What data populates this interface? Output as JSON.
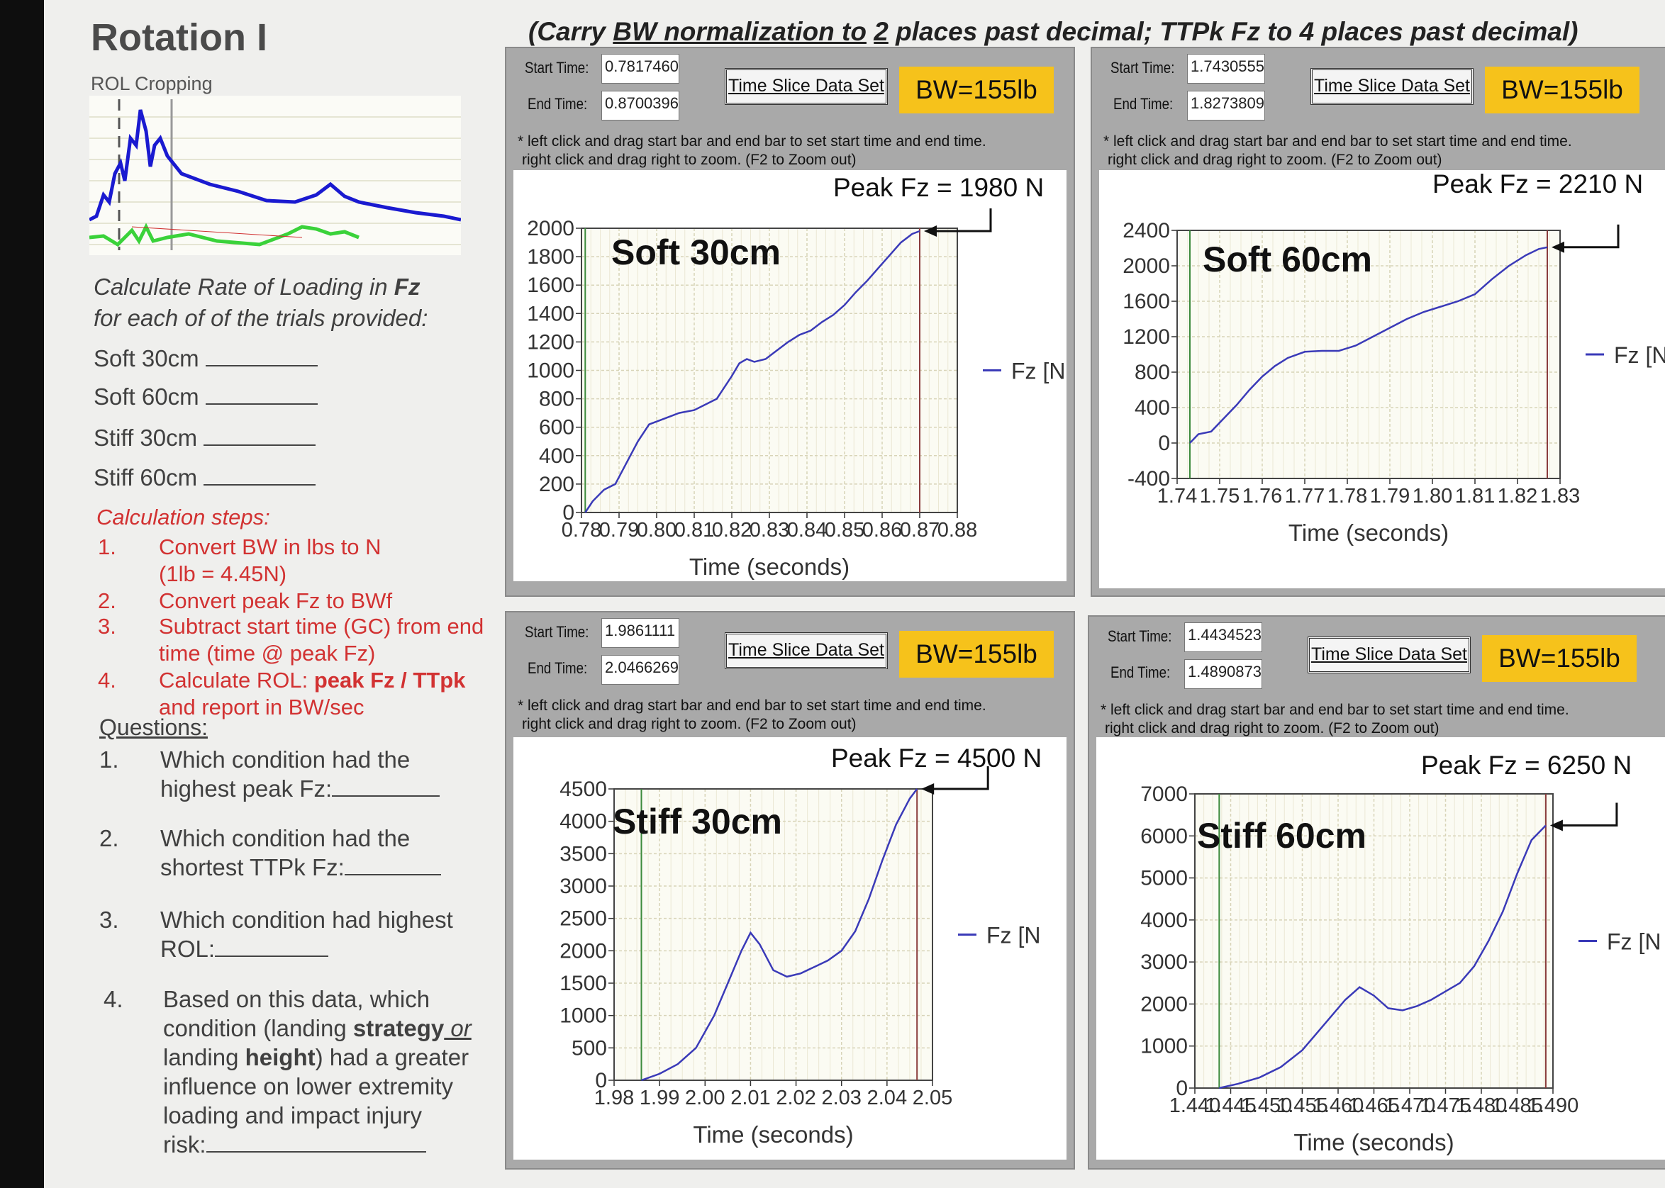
{
  "left": {
    "title": "Rotation I",
    "rol_label": "ROL Cropping",
    "instr1": "Calculate Rate of Loading in ",
    "instr1b": "Fz",
    "instr2": "for each of of the trials provided:",
    "trials": [
      "Soft 30cm",
      "Soft 60cm",
      "Stiff 30cm",
      "Stiff 60cm"
    ],
    "calc_title": "Calculation steps:",
    "steps": [
      {
        "n": "1.",
        "l1": "Convert BW in lbs to N",
        "l2": "(1lb = 4.45N)"
      },
      {
        "n": "2.",
        "l1": "Convert peak Fz to BWf"
      },
      {
        "n": "3.",
        "l1": "Subtract start time (GC) from end",
        "l2": "time (time @ peak Fz)"
      },
      {
        "n": "4.",
        "l1a": "Calculate ROL:  ",
        "l1b": "peak Fz / TTpk",
        "l2": "and report in BW/sec"
      }
    ],
    "questions_title": "Questions:",
    "questions": [
      {
        "n": "1.",
        "lines": [
          "Which condition had the",
          "highest peak Fz:"
        ]
      },
      {
        "n": "2.",
        "lines": [
          "Which condition had the",
          "shortest TTPk Fz:"
        ]
      },
      {
        "n": "3.",
        "lines": [
          "Which condition had highest",
          "ROL:"
        ]
      },
      {
        "n": "4.",
        "lines": [
          "Based on this data, which"
        ],
        "l2a": "condition (landing ",
        "l2b": "strategy",
        "l2c": " or",
        "l3a": "landing ",
        "l3b": "height",
        "l3c": ") had a greater",
        "l4": "influence on lower extremity",
        "l5": "loading and impact injury",
        "l6": "risk:"
      }
    ]
  },
  "header": {
    "a": "(Carry ",
    "b": "BW normalization to",
    "c": " ",
    "d": "2",
    "e": " places past decimal; TTPk Fz to 4 places past decimal)"
  },
  "common": {
    "start_label": "Start Time:",
    "end_label": "End Time:",
    "button": "Time Slice Data Set",
    "bw": "BW=155lb",
    "hint1": "* left click and drag start bar and end bar to set start time and end time.",
    "hint2": "right click and drag right to zoom. (F2 to Zoom out)",
    "xlabel": "Time (seconds)",
    "legend": "Fz [N"
  },
  "panels": [
    {
      "id": "soft30",
      "start": "0.7817460",
      "end": "0.8700396",
      "peak": "Peak Fz = 1980 N",
      "label": "Soft 30cm"
    },
    {
      "id": "soft60",
      "start": "1.7430555",
      "end": "1.8273809",
      "peak": "Peak Fz = 2210 N",
      "label": "Soft 60cm"
    },
    {
      "id": "stiff30",
      "start": "1.9861111",
      "end": "2.0466269",
      "peak": "Peak Fz = 4500 N",
      "label": "Stiff 30cm"
    },
    {
      "id": "stiff60",
      "start": "1.4434523",
      "end": "1.4890873",
      "peak": "Peak Fz = 6250 N",
      "label": "Stiff 60cm"
    }
  ],
  "chart_data": [
    {
      "type": "line",
      "title": "Soft 30cm",
      "xlabel": "Time (seconds)",
      "ylabel": "",
      "ylim": [
        0,
        2000
      ],
      "xlim": [
        0.78,
        0.88
      ],
      "yticks": [
        0,
        200,
        400,
        600,
        800,
        1000,
        1200,
        1400,
        1600,
        1800,
        2000
      ],
      "xticks": [
        "0.78",
        "0.79",
        "0.80",
        "0.81",
        "0.82",
        "0.83",
        "0.84",
        "0.85",
        "0.86",
        "0.87",
        "0.88"
      ],
      "grid": true,
      "legend": "right",
      "series": [
        {
          "name": "Fz [N",
          "color": "#3a3ab8",
          "x": [
            0.781,
            0.783,
            0.786,
            0.789,
            0.792,
            0.795,
            0.798,
            0.802,
            0.806,
            0.81,
            0.813,
            0.816,
            0.818,
            0.82,
            0.822,
            0.824,
            0.826,
            0.829,
            0.832,
            0.835,
            0.838,
            0.841,
            0.844,
            0.847,
            0.85,
            0.853,
            0.856,
            0.859,
            0.862,
            0.865,
            0.868,
            0.87
          ],
          "y": [
            0,
            80,
            160,
            200,
            350,
            500,
            620,
            660,
            700,
            720,
            760,
            800,
            880,
            960,
            1050,
            1080,
            1060,
            1080,
            1140,
            1200,
            1250,
            1280,
            1340,
            1390,
            1460,
            1550,
            1630,
            1720,
            1810,
            1900,
            1960,
            1980
          ]
        }
      ]
    },
    {
      "type": "line",
      "title": "Soft 60cm",
      "xlabel": "Time (seconds)",
      "ylabel": "",
      "ylim": [
        -400,
        2400
      ],
      "xlim": [
        1.74,
        1.83
      ],
      "yticks": [
        -400,
        0,
        400,
        800,
        1200,
        1600,
        2000,
        2400
      ],
      "xticks": [
        "1.74",
        "1.75",
        "1.76",
        "1.77",
        "1.78",
        "1.79",
        "1.80",
        "1.81",
        "1.82",
        "1.83"
      ],
      "grid": true,
      "legend": "right",
      "series": [
        {
          "name": "Fz [N",
          "color": "#3a3ab8",
          "x": [
            1.743,
            1.745,
            1.748,
            1.751,
            1.754,
            1.757,
            1.76,
            1.763,
            1.766,
            1.77,
            1.774,
            1.778,
            1.782,
            1.786,
            1.79,
            1.794,
            1.798,
            1.802,
            1.806,
            1.81,
            1.814,
            1.818,
            1.822,
            1.825,
            1.827
          ],
          "y": [
            0,
            100,
            130,
            280,
            430,
            600,
            750,
            870,
            960,
            1030,
            1040,
            1040,
            1100,
            1200,
            1300,
            1400,
            1480,
            1540,
            1600,
            1680,
            1850,
            2000,
            2120,
            2190,
            2210
          ]
        }
      ]
    },
    {
      "type": "line",
      "title": "Stiff 30cm",
      "xlabel": "Time (seconds)",
      "ylabel": "",
      "ylim": [
        0,
        4500
      ],
      "xlim": [
        1.98,
        2.05
      ],
      "yticks": [
        0,
        500,
        1000,
        1500,
        2000,
        2500,
        3000,
        3500,
        4000,
        4500
      ],
      "xticks": [
        "1.98",
        "1.99",
        "2.00",
        "2.01",
        "2.02",
        "2.03",
        "2.04",
        "2.05"
      ],
      "grid": true,
      "legend": "right",
      "series": [
        {
          "name": "Fz [N",
          "color": "#3a3ab8",
          "x": [
            1.986,
            1.99,
            1.994,
            1.998,
            2.002,
            2.005,
            2.008,
            2.01,
            2.012,
            2.015,
            2.018,
            2.021,
            2.024,
            2.027,
            2.03,
            2.033,
            2.036,
            2.039,
            2.042,
            2.045,
            2.0466
          ],
          "y": [
            0,
            100,
            250,
            500,
            1000,
            1500,
            2000,
            2280,
            2100,
            1700,
            1600,
            1650,
            1750,
            1850,
            2000,
            2300,
            2800,
            3400,
            3950,
            4350,
            4500
          ]
        }
      ]
    },
    {
      "type": "line",
      "title": "Stiff 60cm",
      "xlabel": "Time (seconds)",
      "ylabel": "",
      "ylim": [
        0,
        7000
      ],
      "xlim": [
        1.44,
        1.49
      ],
      "yticks": [
        0,
        1000,
        2000,
        3000,
        4000,
        5000,
        6000,
        7000
      ],
      "xticks": [
        "1.440",
        "1.445",
        "1.450",
        "1.455",
        "1.460",
        "1.465",
        "1.470",
        "1.475",
        "1.480",
        "1.485",
        "1.490"
      ],
      "grid": true,
      "legend": "right",
      "series": [
        {
          "name": "Fz [N",
          "color": "#3a3ab8",
          "x": [
            1.4434,
            1.446,
            1.449,
            1.452,
            1.455,
            1.458,
            1.461,
            1.463,
            1.465,
            1.467,
            1.469,
            1.471,
            1.473,
            1.475,
            1.477,
            1.479,
            1.481,
            1.483,
            1.485,
            1.487,
            1.489
          ],
          "y": [
            0,
            100,
            250,
            500,
            900,
            1500,
            2100,
            2400,
            2200,
            1900,
            1850,
            1950,
            2100,
            2300,
            2500,
            2900,
            3500,
            4200,
            5100,
            5900,
            6250
          ]
        }
      ]
    }
  ]
}
